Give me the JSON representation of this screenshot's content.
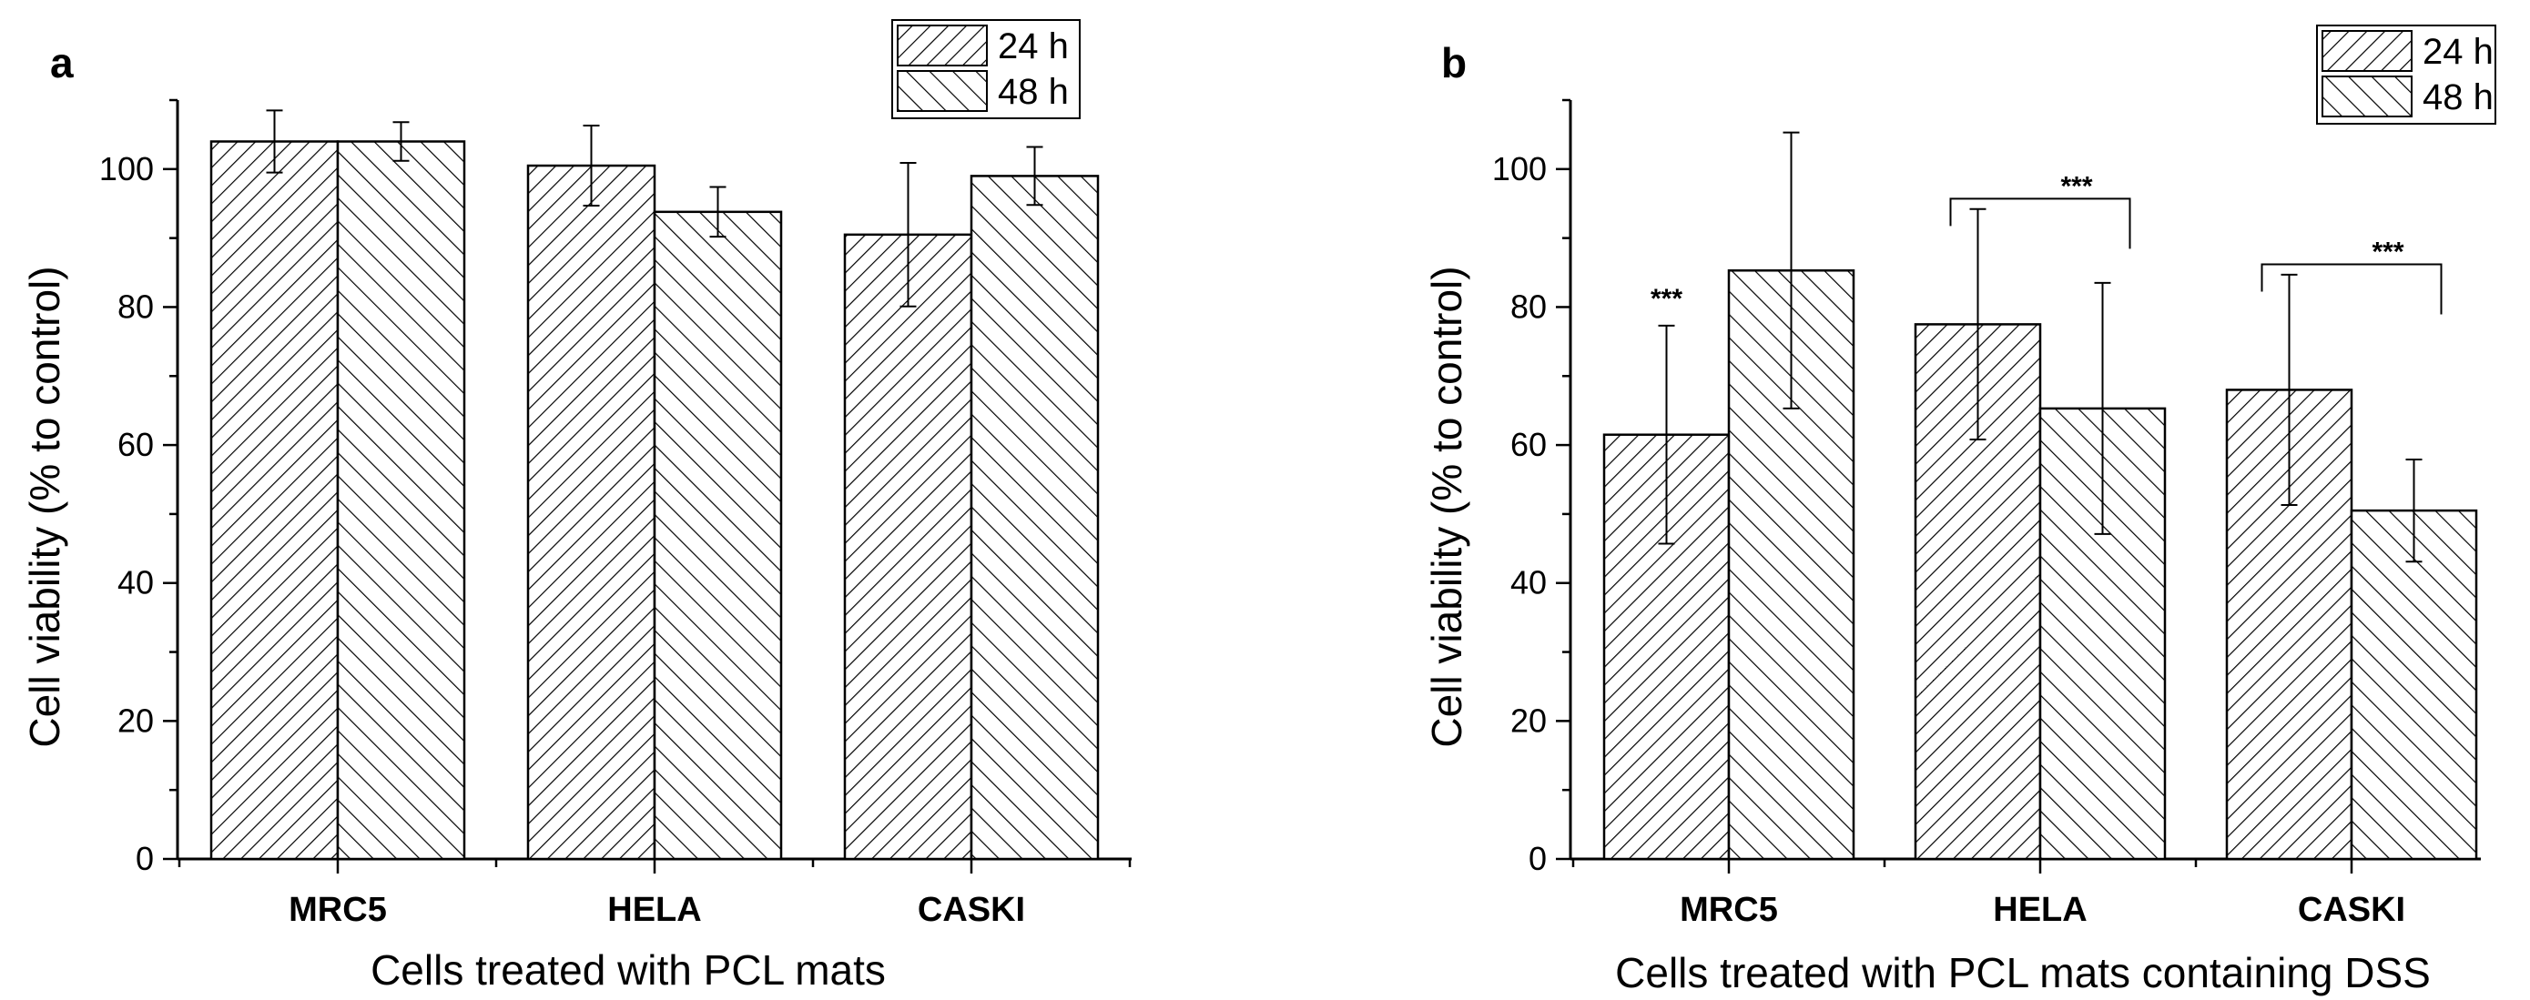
{
  "chart_data": [
    {
      "type": "bar",
      "panel": "a",
      "title": "",
      "xlabel": "Cells treated with PCL mats",
      "ylabel": "Cell viability (% to control)",
      "categories": [
        "MRC5",
        "HELA",
        "CASKI"
      ],
      "ylim": [
        0,
        110
      ],
      "yticks": [
        0,
        20,
        40,
        60,
        80,
        100
      ],
      "series": [
        {
          "name": "24 h",
          "values": [
            104,
            100.5,
            90.5
          ],
          "errors": [
            4.5,
            5.8,
            10.4
          ],
          "pattern": "diag-right"
        },
        {
          "name": "48 h",
          "values": [
            104,
            93.8,
            99
          ],
          "errors": [
            2.8,
            3.6,
            4.2
          ],
          "pattern": "diag-left"
        }
      ],
      "significance": [],
      "legend": "top-right"
    },
    {
      "type": "bar",
      "panel": "b",
      "title": "",
      "xlabel": "Cells treated with PCL mats containing DSS",
      "ylabel": "Cell viability (% to control)",
      "categories": [
        "MRC5",
        "HELA",
        "CASKI"
      ],
      "ylim": [
        0,
        110
      ],
      "yticks": [
        0,
        20,
        40,
        60,
        80,
        100
      ],
      "series": [
        {
          "name": "24 h",
          "values": [
            61.5,
            77.5,
            68
          ],
          "errors": [
            15.8,
            16.7,
            16.7
          ],
          "pattern": "diag-right"
        },
        {
          "name": "48 h",
          "values": [
            85.3,
            65.3,
            50.5
          ],
          "errors": [
            20,
            18.2,
            7.4
          ],
          "pattern": "diag-left"
        }
      ],
      "significance": [
        {
          "label": "***",
          "category": 0,
          "type": "single",
          "series": 0
        },
        {
          "label": "***",
          "category": 1,
          "type": "bracket"
        },
        {
          "label": "***",
          "category": 2,
          "type": "bracket"
        }
      ],
      "legend": "top-right"
    }
  ]
}
